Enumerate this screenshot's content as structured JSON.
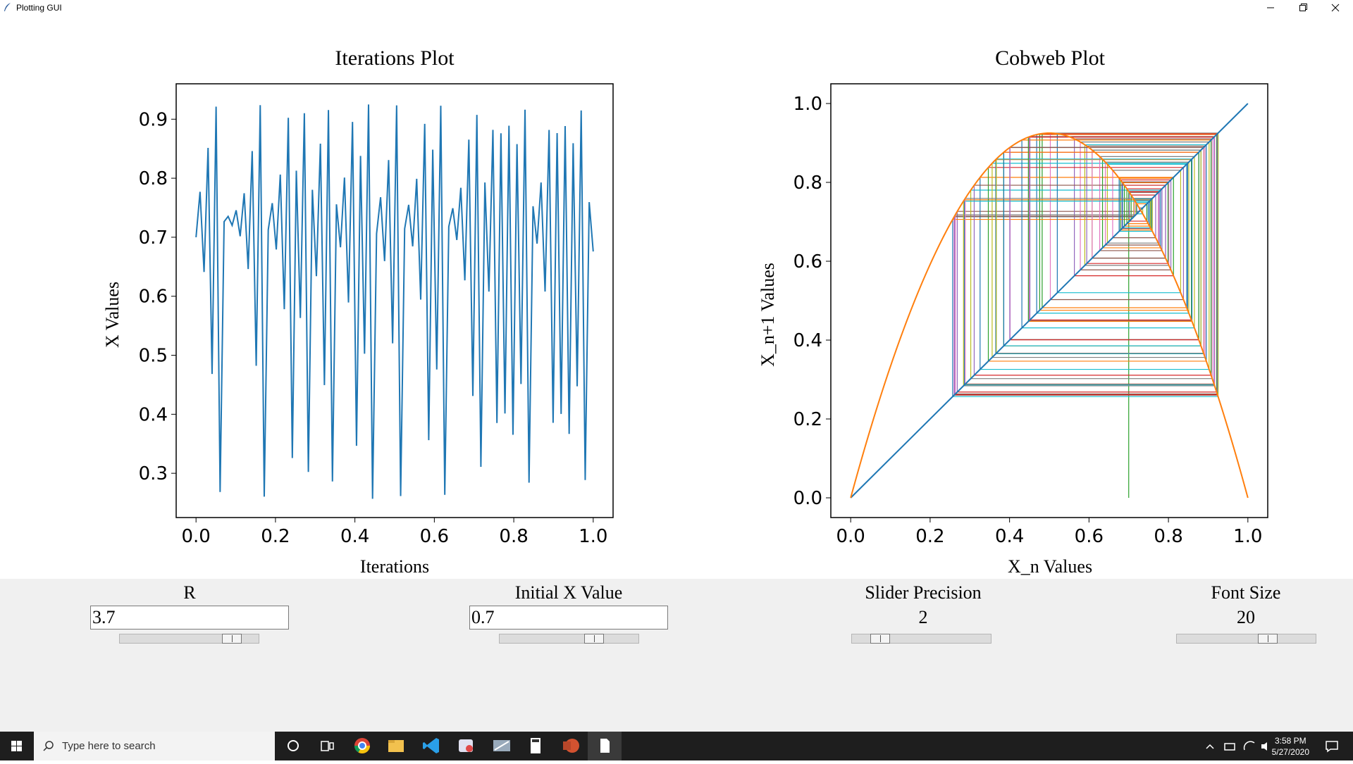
{
  "window": {
    "title": "Plotting GUI"
  },
  "iterations_plot": {
    "title": "Iterations Plot",
    "xlabel": "Iterations",
    "ylabel": "X Values",
    "x_ticks": [
      "0.0",
      "0.2",
      "0.4",
      "0.6",
      "0.8",
      "1.0"
    ],
    "y_ticks": [
      "0.3",
      "0.4",
      "0.5",
      "0.6",
      "0.7",
      "0.8",
      "0.9"
    ]
  },
  "cobweb_plot": {
    "title": "Cobweb Plot",
    "xlabel": "X_n Values",
    "ylabel": "X_n+1 Values",
    "x_ticks": [
      "0.0",
      "0.2",
      "0.4",
      "0.6",
      "0.8",
      "1.0"
    ],
    "y_ticks": [
      "0.0",
      "0.2",
      "0.4",
      "0.6",
      "0.8",
      "1.0"
    ]
  },
  "chart_data": [
    {
      "type": "line",
      "title": "Iterations Plot",
      "xlabel": "Iterations",
      "ylabel": "X Values",
      "xlim": [
        -0.05,
        1.05
      ],
      "ylim": [
        0.225,
        0.96
      ],
      "series": [
        {
          "color": "#1f77b4",
          "r": 3.7,
          "x0": 0.7,
          "points": 100,
          "x": [
            0,
            1
          ],
          "generator": "logistic map x_{n+1} = r x_n (1 - x_n)"
        }
      ]
    },
    {
      "type": "line",
      "title": "Cobweb Plot",
      "xlabel": "X_n Values",
      "ylabel": "X_n+1 Values",
      "xlim": [
        -0.05,
        1.05
      ],
      "ylim": [
        -0.05,
        1.05
      ],
      "series": [
        {
          "color": "#1f77b4",
          "x": [
            0,
            1
          ],
          "y": [
            0,
            1
          ]
        },
        {
          "color": "#ff7f0e",
          "function": "3.7 x (1 - x)"
        }
      ],
      "cobweb": {
        "r": 3.7,
        "x0": 0.7,
        "colors": [
          "#2ca02c",
          "#d62728",
          "#9467bd",
          "#8c564b",
          "#e377c2",
          "#7f7f7f",
          "#bcbd22",
          "#17becf",
          "#1f77b4",
          "#ff7f0e"
        ]
      }
    }
  ],
  "controls": {
    "r": {
      "label": "R",
      "value": "3.7",
      "fraction": 0.85
    },
    "initial_x": {
      "label": "Initial X Value",
      "value": "0.7",
      "fraction": 0.7
    },
    "precision": {
      "label": "Slider Precision",
      "value": "2",
      "fraction": 0.15
    },
    "font_size": {
      "label": "Font Size",
      "value": "20",
      "fraction": 0.67
    }
  },
  "taskbar": {
    "search_placeholder": "Type here to search",
    "time": "3:58 PM",
    "date": "5/27/2020"
  }
}
